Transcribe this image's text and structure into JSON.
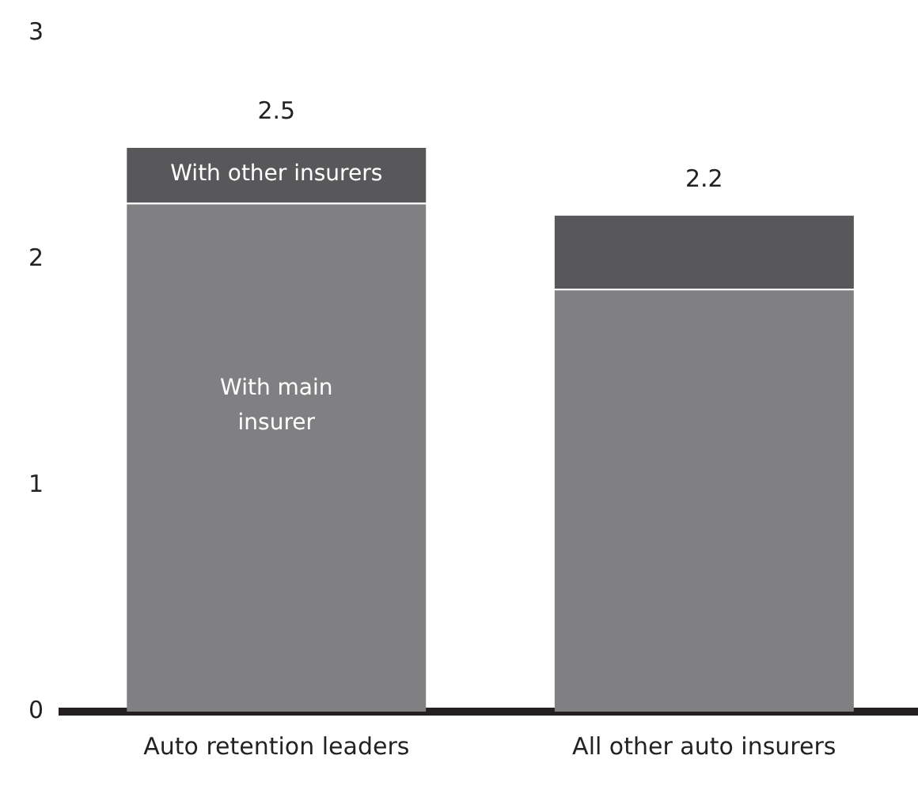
{
  "chart_data": {
    "type": "bar",
    "stacked": true,
    "categories": [
      "Auto retention leaders",
      "All other auto insurers"
    ],
    "series": [
      {
        "name": "With main insurer",
        "color": "#808083",
        "values": [
          2.25,
          1.87
        ]
      },
      {
        "name": "With other insurers",
        "color": "#58585a",
        "values": [
          0.25,
          0.33
        ]
      }
    ],
    "totals": [
      "2.5",
      "2.2"
    ],
    "ylim": [
      0,
      3
    ],
    "yticks": [
      0,
      1,
      2,
      3
    ],
    "grid": false,
    "legend": false
  }
}
